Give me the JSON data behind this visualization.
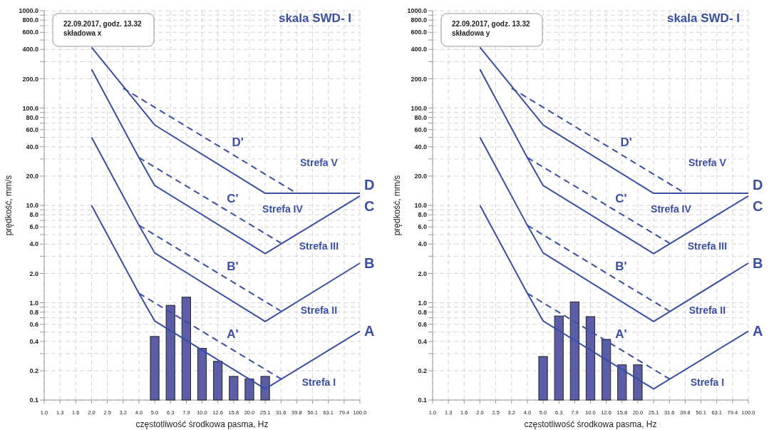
{
  "chart_data": [
    {
      "type": "bar",
      "title": "skala SWD- I",
      "xlabel": "częstotliwość środkowa pasma, Hz",
      "ylabel": "prędkość, mm/s",
      "categories": [
        "1.0",
        "1.3",
        "1.6",
        "2.0",
        "2.5",
        "3.2",
        "4.0",
        "5.0",
        "6.3",
        "7.9",
        "10.0",
        "12.6",
        "15.8",
        "20.0",
        "25.1",
        "31.6",
        "39.8",
        "50.1",
        "63.1",
        "79.4",
        "100.0"
      ],
      "log": "y",
      "grid": true,
      "legend": false,
      "ylim": [
        0.1,
        1000
      ],
      "yticks": [
        0.1,
        0.2,
        {
          "value": 0.3,
          "label": null
        },
        0.4,
        {
          "value": 0.5,
          "label": null
        },
        0.6,
        {
          "value": 0.7,
          "label": null
        },
        0.8,
        {
          "value": 0.9,
          "label": null
        },
        {
          "value": 1,
          "label": "1.0"
        },
        {
          "value": 2,
          "label": "2.0"
        },
        {
          "value": 3,
          "label": null
        },
        {
          "value": 4,
          "label": "4.0"
        },
        {
          "value": 5,
          "label": null
        },
        {
          "value": 6,
          "label": "6.0"
        },
        {
          "value": 7,
          "label": null
        },
        {
          "value": 8,
          "label": "8.0"
        },
        {
          "value": 9,
          "label": null
        },
        {
          "value": 10,
          "label": "10.0"
        },
        {
          "value": 20,
          "label": "20.0"
        },
        {
          "value": 30,
          "label": null
        },
        {
          "value": 40,
          "label": "40.0"
        },
        {
          "value": 50,
          "label": null
        },
        {
          "value": 60,
          "label": "60.0"
        },
        {
          "value": 70,
          "label": null
        },
        {
          "value": 80,
          "label": "80.0"
        },
        {
          "value": 90,
          "label": null
        },
        {
          "value": 100,
          "label": "100.0"
        },
        {
          "value": 200,
          "label": "200.0"
        },
        {
          "value": 300,
          "label": null
        },
        {
          "value": 400,
          "label": "400.0"
        },
        {
          "value": 500,
          "label": null
        },
        {
          "value": 600,
          "label": "600.0"
        },
        {
          "value": 700,
          "label": null
        },
        {
          "value": 800,
          "label": "800.0"
        },
        {
          "value": 900,
          "label": null
        },
        {
          "value": 1000,
          "label": "1000.0"
        }
      ],
      "series": [
        {
          "color": "#5b5ea6",
          "values": [
            null,
            null,
            null,
            null,
            null,
            null,
            null,
            0.45,
            0.94,
            1.14,
            0.34,
            0.25,
            0.175,
            0.165,
            0.175,
            null,
            null,
            null,
            null,
            null,
            null
          ]
        },
        {
          "type": "line",
          "name": "A",
          "color": "#3a4fa3",
          "line_style": "solid",
          "x": [
            "2.0",
            "4.0",
            "5.0",
            "25.1",
            "100.0"
          ],
          "values": [
            10,
            1.25,
            0.65,
            0.13,
            0.51
          ]
        },
        {
          "type": "line",
          "name": "B",
          "color": "#3a4fa3",
          "line_style": "solid",
          "x": [
            "2.0",
            "4.0",
            "5.0",
            "25.1",
            "100.0"
          ],
          "values": [
            50,
            6.25,
            3.25,
            0.64,
            2.55
          ]
        },
        {
          "type": "line",
          "name": "C",
          "color": "#3a4fa3",
          "line_style": "solid",
          "x": [
            "2.0",
            "4.0",
            "5.0",
            "25.1",
            "100.0"
          ],
          "values": [
            250,
            31,
            16,
            3.2,
            12.5
          ]
        },
        {
          "type": "line",
          "name": "D",
          "color": "#3a4fa3",
          "line_style": "solid",
          "x": [
            "2.0",
            "5.0",
            "25.1",
            "100.0"
          ],
          "values": [
            420,
            67,
            13.3,
            13.3
          ]
        },
        {
          "type": "line",
          "name": "A'",
          "color": "#3a4fa3",
          "line_style": "dashed",
          "x": [
            "4.0",
            "31.6"
          ],
          "values": [
            1.25,
            0.165
          ]
        },
        {
          "type": "line",
          "name": "B'",
          "color": "#3a4fa3",
          "line_style": "dashed",
          "x": [
            "4.0",
            "31.6"
          ],
          "values": [
            6.25,
            0.82
          ]
        },
        {
          "type": "line",
          "name": "C'",
          "color": "#3a4fa3",
          "line_style": "dashed",
          "x": [
            "4.0",
            "31.6"
          ],
          "values": [
            31,
            4.1
          ]
        },
        {
          "type": "line",
          "name": "D'",
          "color": "#3a4fa3",
          "line_style": "dashed",
          "x": [
            "3.2",
            "39.8"
          ],
          "values": [
            160,
            13.3
          ]
        }
      ],
      "annotations": [
        "22.09.2017, godz. 13.32",
        "składowa x",
        "Strefa V",
        "Strefa IV",
        "Strefa III",
        "Strefa II",
        "Strefa I"
      ]
    },
    {
      "type": "bar",
      "title": "skala SWD- I",
      "xlabel": "częstotliwość środkowa pasma, Hz",
      "ylabel": "prędkość, mm/s",
      "categories": [
        "1.0",
        "1.3",
        "1.6",
        "2.0",
        "2.5",
        "3.2",
        "4.0",
        "5.0",
        "6.3",
        "7.9",
        "10.0",
        "12.6",
        "15.8",
        "20.0",
        "25.1",
        "31.6",
        "39.8",
        "50.1",
        "63.1",
        "79.4",
        "100.0"
      ],
      "log": "y",
      "grid": true,
      "legend": false,
      "ylim": [
        0.1,
        1000
      ],
      "yticks": [
        0.1,
        0.2,
        {
          "value": 0.3,
          "label": null
        },
        0.4,
        {
          "value": 0.5,
          "label": null
        },
        0.6,
        {
          "value": 0.7,
          "label": null
        },
        0.8,
        {
          "value": 0.9,
          "label": null
        },
        {
          "value": 1,
          "label": "1.0"
        },
        {
          "value": 2,
          "label": "2.0"
        },
        {
          "value": 3,
          "label": null
        },
        {
          "value": 4,
          "label": "4.0"
        },
        {
          "value": 5,
          "label": null
        },
        {
          "value": 6,
          "label": "6.0"
        },
        {
          "value": 7,
          "label": null
        },
        {
          "value": 8,
          "label": "8.0"
        },
        {
          "value": 9,
          "label": null
        },
        {
          "value": 10,
          "label": "10.0"
        },
        {
          "value": 20,
          "label": "20.0"
        },
        {
          "value": 30,
          "label": null
        },
        {
          "value": 40,
          "label": "40.0"
        },
        {
          "value": 50,
          "label": null
        },
        {
          "value": 60,
          "label": "60.0"
        },
        {
          "value": 70,
          "label": null
        },
        {
          "value": 80,
          "label": "80.0"
        },
        {
          "value": 90,
          "label": null
        },
        {
          "value": 100,
          "label": "100.0"
        },
        {
          "value": 200,
          "label": "200.0"
        },
        {
          "value": 300,
          "label": null
        },
        {
          "value": 400,
          "label": "400.0"
        },
        {
          "value": 500,
          "label": null
        },
        {
          "value": 600,
          "label": "600.0"
        },
        {
          "value": 700,
          "label": null
        },
        {
          "value": 800,
          "label": "800.0"
        },
        {
          "value": 900,
          "label": null
        },
        {
          "value": 1000,
          "label": "1000.0"
        }
      ],
      "series": [
        {
          "color": "#5b5ea6",
          "values": [
            null,
            null,
            null,
            null,
            null,
            null,
            null,
            0.28,
            0.73,
            1.02,
            0.72,
            0.42,
            0.23,
            0.23,
            null,
            null,
            null,
            null,
            null,
            null,
            null
          ]
        },
        {
          "type": "line",
          "name": "A",
          "color": "#3a4fa3",
          "line_style": "solid",
          "x": [
            "2.0",
            "4.0",
            "5.0",
            "25.1",
            "100.0"
          ],
          "values": [
            10,
            1.25,
            0.65,
            0.13,
            0.51
          ]
        },
        {
          "type": "line",
          "name": "B",
          "color": "#3a4fa3",
          "line_style": "solid",
          "x": [
            "2.0",
            "4.0",
            "5.0",
            "25.1",
            "100.0"
          ],
          "values": [
            50,
            6.25,
            3.25,
            0.64,
            2.55
          ]
        },
        {
          "type": "line",
          "name": "C",
          "color": "#3a4fa3",
          "line_style": "solid",
          "x": [
            "2.0",
            "4.0",
            "5.0",
            "25.1",
            "100.0"
          ],
          "values": [
            250,
            31,
            16,
            3.2,
            12.5
          ]
        },
        {
          "type": "line",
          "name": "D",
          "color": "#3a4fa3",
          "line_style": "solid",
          "x": [
            "2.0",
            "5.0",
            "25.1",
            "100.0"
          ],
          "values": [
            420,
            67,
            13.3,
            13.3
          ]
        },
        {
          "type": "line",
          "name": "A'",
          "color": "#3a4fa3",
          "line_style": "dashed",
          "x": [
            "4.0",
            "31.6"
          ],
          "values": [
            1.25,
            0.165
          ]
        },
        {
          "type": "line",
          "name": "B'",
          "color": "#3a4fa3",
          "line_style": "dashed",
          "x": [
            "4.0",
            "31.6"
          ],
          "values": [
            6.25,
            0.82
          ]
        },
        {
          "type": "line",
          "name": "C'",
          "color": "#3a4fa3",
          "line_style": "dashed",
          "x": [
            "4.0",
            "31.6"
          ],
          "values": [
            31,
            4.1
          ]
        },
        {
          "type": "line",
          "name": "D'",
          "color": "#3a4fa3",
          "line_style": "dashed",
          "x": [
            "3.2",
            "39.8"
          ],
          "values": [
            160,
            13.3
          ]
        }
      ],
      "annotations": [
        "22.09.2017, godz. 13.32",
        "składowa y",
        "Strefa V",
        "Strefa IV",
        "Strefa III",
        "Strefa II",
        "Strefa I"
      ]
    }
  ]
}
